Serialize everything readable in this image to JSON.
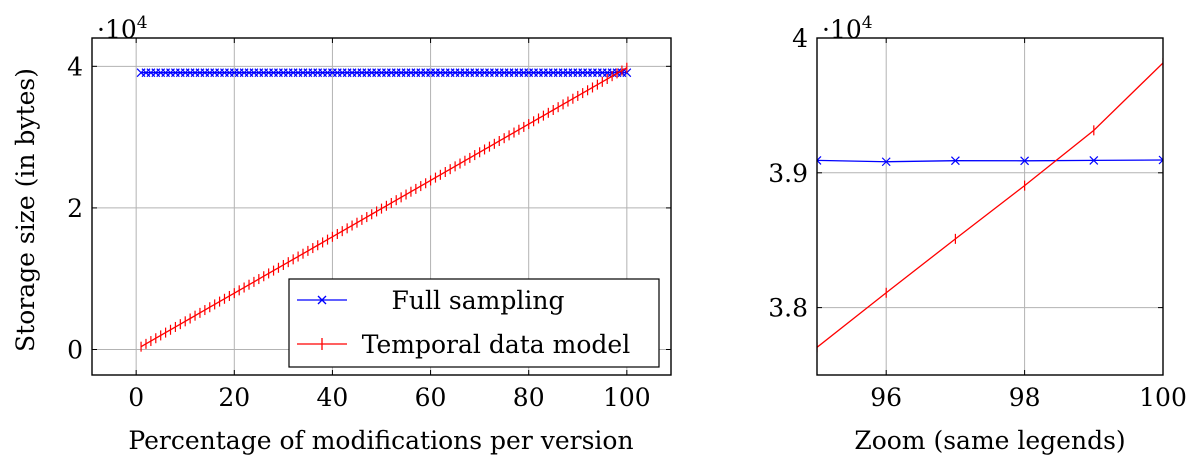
{
  "chart_data": [
    {
      "type": "line",
      "title": "",
      "xlabel": "Percentage of modifications per version",
      "ylabel": "Storage size (in bytes)",
      "multiplier_label": "·10⁴",
      "multiplier_base": "·10",
      "multiplier_exp": "4",
      "xlim": [
        -9,
        109
      ],
      "ylim": [
        -0.36,
        4.4
      ],
      "xticks": [
        0,
        20,
        40,
        60,
        80,
        100
      ],
      "xtick_labels": [
        "0",
        "20",
        "40",
        "60",
        "80",
        "100"
      ],
      "yticks": [
        0,
        2,
        4
      ],
      "ytick_labels": [
        "0",
        "2",
        "4"
      ],
      "grid": true,
      "legend_position": "bottom-right",
      "x_range": [
        1,
        100
      ],
      "series": [
        {
          "name": "Full sampling",
          "color": "#0000ff",
          "marker": "x",
          "description_of_values": "approximately constant",
          "y_start": 3.91,
          "y_end": 3.91
        },
        {
          "name": "Temporal data model",
          "color": "#ff0000",
          "marker": "|",
          "description_of_values": "linear increase",
          "y_start": 0.04,
          "y_end": 3.98
        }
      ]
    },
    {
      "type": "line",
      "title": "",
      "xlabel": "Zoom (same legends)",
      "ylabel": "",
      "multiplier_label": "·10⁴",
      "multiplier_base": "·10",
      "multiplier_exp": "4",
      "xlim": [
        95,
        100
      ],
      "ylim": [
        3.75,
        4.0
      ],
      "xticks": [
        96,
        98,
        100
      ],
      "xtick_labels": [
        "96",
        "98",
        "100"
      ],
      "yticks": [
        3.8,
        3.9,
        4.0
      ],
      "ytick_labels": [
        "3.8",
        "3.9",
        "4"
      ],
      "grid": true,
      "series": [
        {
          "name": "Full sampling",
          "color": "#0000ff",
          "marker": "x",
          "x": [
            95,
            96,
            97,
            98,
            99,
            100
          ],
          "y": [
            3.9092,
            3.9082,
            3.909,
            3.9089,
            3.9092,
            3.9095
          ]
        },
        {
          "name": "Temporal data model",
          "color": "#ff0000",
          "marker": "|",
          "x": [
            95,
            96,
            97,
            98,
            99,
            100
          ],
          "y": [
            3.7705,
            3.811,
            3.851,
            3.8905,
            3.9315,
            3.9815
          ]
        }
      ]
    }
  ]
}
